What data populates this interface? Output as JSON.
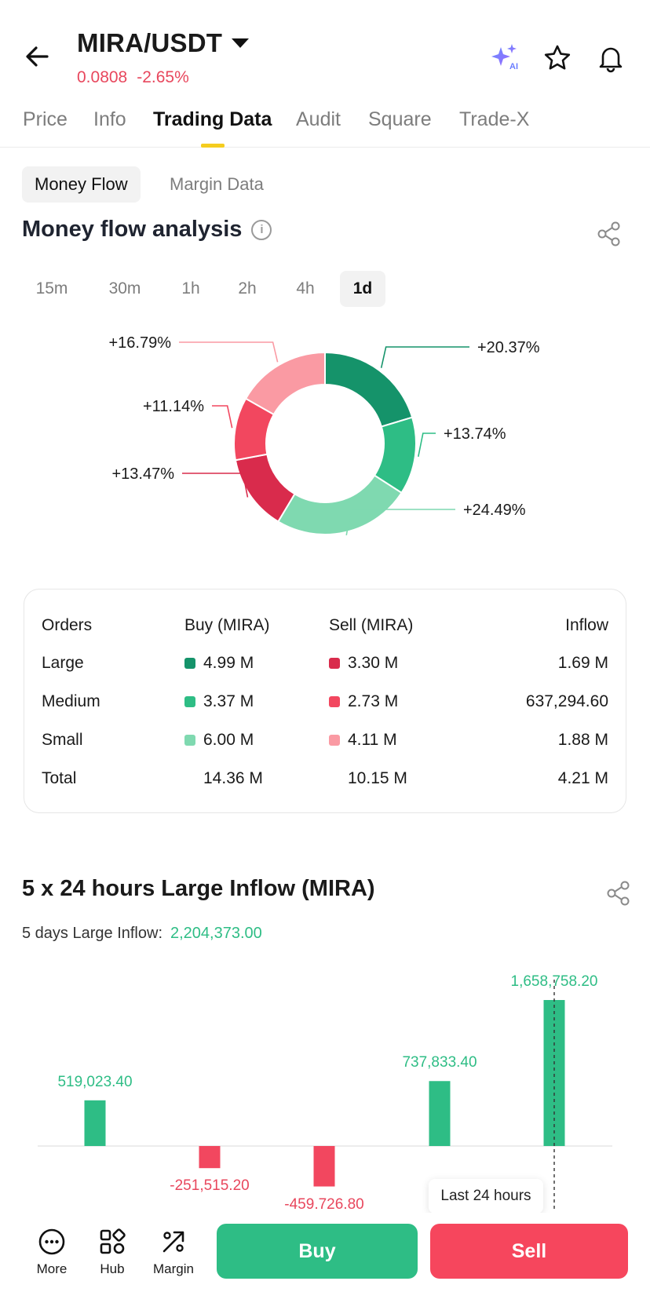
{
  "header": {
    "pair": "MIRA/USDT",
    "price": "0.0808",
    "change": "-2.65%"
  },
  "tabs": [
    {
      "label": "Price"
    },
    {
      "label": "Info"
    },
    {
      "label": "Trading Data",
      "active": true
    },
    {
      "label": "Audit"
    },
    {
      "label": "Square"
    },
    {
      "label": "Trade-X"
    }
  ],
  "subtabs": [
    {
      "label": "Money Flow",
      "active": true
    },
    {
      "label": "Margin Data"
    }
  ],
  "money_flow": {
    "title": "Money flow analysis",
    "periods": [
      "15m",
      "30m",
      "1h",
      "2h",
      "4h",
      "1d"
    ],
    "active_period": "1d"
  },
  "colors": {
    "large_buy": "#15936a",
    "medium_buy": "#2ebd85",
    "small_buy": "#7fd9b0",
    "large_sell": "#d92b4c",
    "medium_sell": "#f2475f",
    "small_sell": "#fa9aa3",
    "green_text": "#2ebd85",
    "red_text": "#e8475d",
    "accent_yellow": "#f5cd1f"
  },
  "chart_data": [
    {
      "type": "pie",
      "labels": [
        "+20.37%",
        "+13.74%",
        "+24.49%",
        "+13.47%",
        "+11.14%",
        "+16.79%"
      ],
      "values": [
        20.37,
        13.74,
        24.49,
        13.47,
        11.14,
        16.79
      ]
    },
    {
      "type": "bar",
      "title": "5 x 24 hours Large Inflow (MIRA)",
      "categories": [
        "",
        "",
        "",
        "",
        ""
      ],
      "values": [
        519023.4,
        -251515.2,
        -459726.8,
        737833.4,
        1658758.2
      ],
      "labels": [
        "519,023.40",
        "-251,515.20",
        "-459,726.80",
        "737,833.40",
        "1,658,758.20"
      ]
    }
  ],
  "table": {
    "headers": [
      "Orders",
      "Buy (MIRA)",
      "Sell (MIRA)",
      "Inflow"
    ],
    "rows": [
      {
        "order": "Large",
        "buy": "4.99 M",
        "sell": "3.30 M",
        "inflow": "1.69 M"
      },
      {
        "order": "Medium",
        "buy": "3.37 M",
        "sell": "2.73 M",
        "inflow": "637,294.60"
      },
      {
        "order": "Small",
        "buy": "6.00 M",
        "sell": "4.11 M",
        "inflow": "1.88 M"
      },
      {
        "order": "Total",
        "buy": "14.36 M",
        "sell": "10.15 M",
        "inflow": "4.21 M"
      }
    ]
  },
  "large_inflow": {
    "title": "5 x 24 hours Large Inflow (MIRA)",
    "summary_label": "5 days Large Inflow:",
    "summary_value": "2,204,373.00",
    "tooltip": "Last 24 hours"
  },
  "bottom_bar": {
    "more": "More",
    "hub": "Hub",
    "margin": "Margin",
    "buy": "Buy",
    "sell": "Sell"
  }
}
